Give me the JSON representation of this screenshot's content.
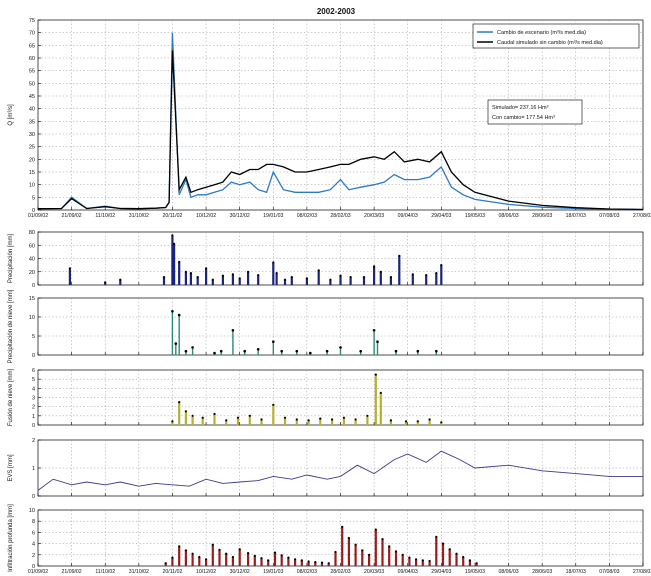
{
  "figure_title": "2002-2003",
  "date_ticks": [
    "01/09/02",
    "21/09/02",
    "11/10/02",
    "31/10/02",
    "20/11/02",
    "10/12/02",
    "30/12/02",
    "19/01/03",
    "08/02/03",
    "28/02/03",
    "20/03/03",
    "09/04/03",
    "29/04/03",
    "19/05/03",
    "08/06/03",
    "28/06/03",
    "18/07/03",
    "07/08/03",
    "27/08/03"
  ],
  "chart_data": [
    {
      "id": "caudal",
      "type": "line",
      "ylabel": "Q [m³/s]",
      "ylim": [
        0,
        75
      ],
      "yticks": [
        0,
        5,
        10,
        15,
        20,
        25,
        30,
        35,
        40,
        45,
        50,
        55,
        60,
        65,
        70,
        75
      ],
      "grid": true,
      "legend_position": "top-right",
      "x_dates": [
        "01/09/02",
        "15/09/02",
        "21/09/02",
        "30/09/02",
        "11/10/02",
        "20/10/02",
        "31/10/02",
        "10/11/02",
        "16/11/02",
        "18/11/02",
        "20/11/02",
        "24/11/02",
        "28/11/02",
        "01/12/02",
        "05/12/02",
        "10/12/02",
        "15/12/02",
        "20/12/02",
        "25/12/02",
        "30/12/02",
        "05/01/03",
        "10/01/03",
        "15/01/03",
        "19/01/03",
        "25/01/03",
        "01/02/03",
        "08/02/03",
        "15/02/03",
        "22/02/03",
        "28/02/03",
        "05/03/03",
        "12/03/03",
        "20/03/03",
        "26/03/03",
        "01/04/03",
        "07/04/03",
        "15/04/03",
        "22/04/03",
        "29/04/03",
        "05/05/03",
        "12/05/03",
        "19/05/03",
        "08/06/03",
        "28/06/03",
        "18/07/03",
        "07/08/03",
        "27/08/03"
      ],
      "series": [
        {
          "name": "Cambio de escenario (m³/s med.dia)",
          "color": "#2e79c7",
          "values": [
            0.5,
            0.6,
            5,
            0.6,
            1.5,
            0.6,
            0.5,
            0.7,
            1,
            3,
            70,
            6,
            12,
            5,
            6,
            6,
            7,
            8,
            11,
            10,
            11,
            8,
            7,
            15,
            8,
            7,
            7,
            7,
            8,
            12,
            8,
            9,
            10,
            11,
            14,
            12,
            12,
            13,
            17,
            9,
            6,
            4.2,
            2.2,
            1.1,
            0.6,
            0.3,
            0.2
          ]
        },
        {
          "name": "Caudal simulado sin cambio (m³/s med.dia)",
          "color": "#000000",
          "values": [
            0.5,
            0.6,
            4.5,
            0.6,
            1.3,
            0.6,
            0.5,
            0.7,
            1,
            3,
            63,
            8,
            13,
            7,
            8,
            9,
            10,
            11,
            15,
            14,
            16,
            16,
            18,
            18,
            17,
            15,
            15,
            16,
            17,
            18,
            18,
            20,
            21,
            20,
            23,
            19,
            20,
            19,
            23,
            15,
            10,
            7,
            3.5,
            1.8,
            0.9,
            0.4,
            0.2
          ]
        }
      ],
      "annotations": [
        "Simulado= 237.16 Hm³",
        "Con cambio= 177.54 Hm³"
      ]
    },
    {
      "id": "precip",
      "type": "bar",
      "ylabel": "Precipitación [mm]",
      "ylim": [
        0,
        80
      ],
      "yticks": [
        0,
        20,
        40,
        60,
        80
      ],
      "grid": true,
      "color": "#1a237e",
      "x_dates": [
        "20/09/02",
        "11/10/02",
        "20/10/02",
        "15/11/02",
        "20/11/02",
        "21/11/02",
        "24/11/02",
        "28/11/02",
        "01/12/02",
        "05/12/02",
        "10/12/02",
        "14/12/02",
        "20/12/02",
        "26/12/02",
        "30/12/02",
        "04/01/03",
        "10/01/03",
        "19/01/03",
        "21/01/03",
        "26/01/03",
        "30/01/03",
        "08/02/03",
        "15/02/03",
        "22/02/03",
        "28/02/03",
        "06/03/03",
        "14/03/03",
        "20/03/03",
        "24/03/03",
        "30/03/03",
        "04/04/03",
        "12/04/03",
        "20/04/03",
        "26/04/03",
        "29/04/03"
      ],
      "values": [
        25,
        4,
        8,
        12,
        75,
        62,
        35,
        20,
        18,
        12,
        25,
        8,
        14,
        16,
        10,
        20,
        15,
        34,
        18,
        8,
        12,
        10,
        22,
        8,
        14,
        12,
        12,
        28,
        20,
        12,
        44,
        16,
        15,
        18,
        30
      ]
    },
    {
      "id": "nieve",
      "type": "scatter",
      "ylabel": "Precipitación de nieve [mm]",
      "ylim": [
        0,
        15
      ],
      "yticks": [
        0,
        5,
        10,
        15
      ],
      "grid": true,
      "color": "#2a8a7a",
      "x_dates": [
        "20/11/02",
        "22/11/02",
        "24/11/02",
        "28/11/02",
        "02/12/02",
        "15/12/02",
        "19/12/02",
        "26/12/02",
        "02/01/03",
        "10/01/03",
        "19/01/03",
        "24/01/03",
        "02/02/03",
        "10/02/03",
        "20/02/03",
        "28/02/03",
        "12/03/03",
        "20/03/03",
        "22/03/03",
        "02/04/03",
        "15/04/03",
        "26/04/03"
      ],
      "values": [
        11.5,
        3,
        10.5,
        1,
        2,
        0.5,
        1,
        6.5,
        1,
        1.5,
        3.5,
        1,
        1,
        0.5,
        1,
        2,
        1,
        6.5,
        3.5,
        1,
        1,
        1
      ]
    },
    {
      "id": "fusion",
      "type": "bar",
      "ylabel": "Fusión de nieve [mm]",
      "ylim": [
        0,
        6
      ],
      "yticks": [
        0,
        1,
        2,
        3,
        4,
        5,
        6
      ],
      "grid": true,
      "color": "#b5b032",
      "x_dates": [
        "20/11/02",
        "24/11/02",
        "28/11/02",
        "02/12/02",
        "08/12/02",
        "15/12/02",
        "22/12/02",
        "29/12/02",
        "05/01/03",
        "12/01/03",
        "19/01/03",
        "26/01/03",
        "02/02/03",
        "09/02/03",
        "16/02/03",
        "23/02/03",
        "02/03/03",
        "09/03/03",
        "16/03/03",
        "21/03/03",
        "24/03/03",
        "30/03/03",
        "08/04/03",
        "15/04/03",
        "22/04/03",
        "29/04/03"
      ],
      "values": [
        0.4,
        2.5,
        1.5,
        1,
        0.8,
        1.2,
        0.5,
        0.8,
        1,
        0.6,
        2.2,
        0.8,
        0.6,
        0.5,
        0.7,
        0.6,
        0.8,
        0.6,
        1,
        5.5,
        3.5,
        0.5,
        0.4,
        0.4,
        0.6,
        0.3
      ]
    },
    {
      "id": "evs",
      "type": "line",
      "ylabel": "EVS [mm]",
      "ylim": [
        0,
        2
      ],
      "yticks": [
        0,
        1,
        2
      ],
      "grid": true,
      "color": "#3a3a8f",
      "x_dates": [
        "01/09/02",
        "10/09/02",
        "21/09/02",
        "30/09/02",
        "11/10/02",
        "20/10/02",
        "31/10/02",
        "10/11/02",
        "20/11/02",
        "30/11/02",
        "10/12/02",
        "20/12/02",
        "30/12/02",
        "10/01/03",
        "19/01/03",
        "30/01/03",
        "08/02/03",
        "20/02/03",
        "28/02/03",
        "10/03/03",
        "20/03/03",
        "01/04/03",
        "09/04/03",
        "20/04/03",
        "29/04/03",
        "10/05/03",
        "19/05/03",
        "08/06/03",
        "28/06/03",
        "18/07/03",
        "07/08/03",
        "27/08/03"
      ],
      "values": [
        0.2,
        0.6,
        0.4,
        0.5,
        0.4,
        0.5,
        0.35,
        0.45,
        0.4,
        0.35,
        0.6,
        0.45,
        0.5,
        0.55,
        0.7,
        0.6,
        0.75,
        0.6,
        0.7,
        1.1,
        0.8,
        1.3,
        1.5,
        1.2,
        1.6,
        1.3,
        1.0,
        1.1,
        0.9,
        0.8,
        0.7,
        0.7
      ]
    },
    {
      "id": "infiltracion",
      "type": "bar",
      "ylabel": "Infiltración profunda [mm]",
      "ylim": [
        0,
        10
      ],
      "yticks": [
        0,
        2,
        4,
        6,
        8,
        10
      ],
      "grid": true,
      "color": "#9b1c1c",
      "x_dates": [
        "16/11/02",
        "20/11/02",
        "24/11/02",
        "28/11/02",
        "02/12/02",
        "06/12/02",
        "10/12/02",
        "14/12/02",
        "18/12/02",
        "22/12/02",
        "26/12/02",
        "30/12/02",
        "04/01/03",
        "08/01/03",
        "12/01/03",
        "16/01/03",
        "20/01/03",
        "24/01/03",
        "28/01/03",
        "01/02/03",
        "05/02/03",
        "09/02/03",
        "13/02/03",
        "17/02/03",
        "21/02/03",
        "25/02/03",
        "01/03/03",
        "05/03/03",
        "09/03/03",
        "13/03/03",
        "17/03/03",
        "21/03/03",
        "25/03/03",
        "29/03/03",
        "02/04/03",
        "06/04/03",
        "10/04/03",
        "14/04/03",
        "18/04/03",
        "22/04/03",
        "26/04/03",
        "30/04/03",
        "04/05/03",
        "08/05/03",
        "12/05/03",
        "16/05/03",
        "20/05/03"
      ],
      "values": [
        0.5,
        1.5,
        3.5,
        2.8,
        2.2,
        1.6,
        1.2,
        3.8,
        2.9,
        2.2,
        1.6,
        3.0,
        2.3,
        1.8,
        1.4,
        1.0,
        2.4,
        1.9,
        1.5,
        1.2,
        1.0,
        0.8,
        0.7,
        0.6,
        0.5,
        2.5,
        7.0,
        5.0,
        3.8,
        2.8,
        2.0,
        6.5,
        4.8,
        3.5,
        2.6,
        2.0,
        1.5,
        1.2,
        1.0,
        0.9,
        5.2,
        4.0,
        3.0,
        2.2,
        1.6,
        1.0,
        0.5
      ]
    }
  ]
}
